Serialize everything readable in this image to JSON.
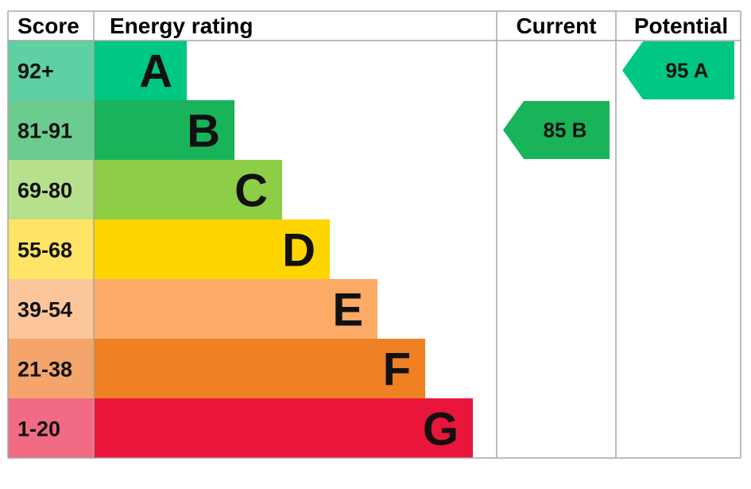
{
  "chart_data": {
    "type": "table",
    "headers": {
      "score": "Score",
      "rating": "Energy rating",
      "current": "Current",
      "potential": "Potential"
    },
    "bands": [
      {
        "letter": "A",
        "range": "92+",
        "color": "#00c781",
        "score_bg": "#5fd0a4"
      },
      {
        "letter": "B",
        "range": "81-91",
        "color": "#19b459",
        "score_bg": "#6ccb8e"
      },
      {
        "letter": "C",
        "range": "69-80",
        "color": "#8dce46",
        "score_bg": "#b7e08c"
      },
      {
        "letter": "D",
        "range": "55-68",
        "color": "#ffd500",
        "score_bg": "#ffe466"
      },
      {
        "letter": "E",
        "range": "39-54",
        "color": "#fcaa65",
        "score_bg": "#fdc69a"
      },
      {
        "letter": "F",
        "range": "21-38",
        "color": "#ef8023",
        "score_bg": "#f4a56b"
      },
      {
        "letter": "G",
        "range": "1-20",
        "color": "#e9153b",
        "score_bg": "#f06b83"
      }
    ],
    "current": {
      "value": 85,
      "letter": "B",
      "label": "85  B",
      "color": "#19b459"
    },
    "potential": {
      "value": 95,
      "letter": "A",
      "label": "95  A",
      "color": "#00c781"
    }
  }
}
